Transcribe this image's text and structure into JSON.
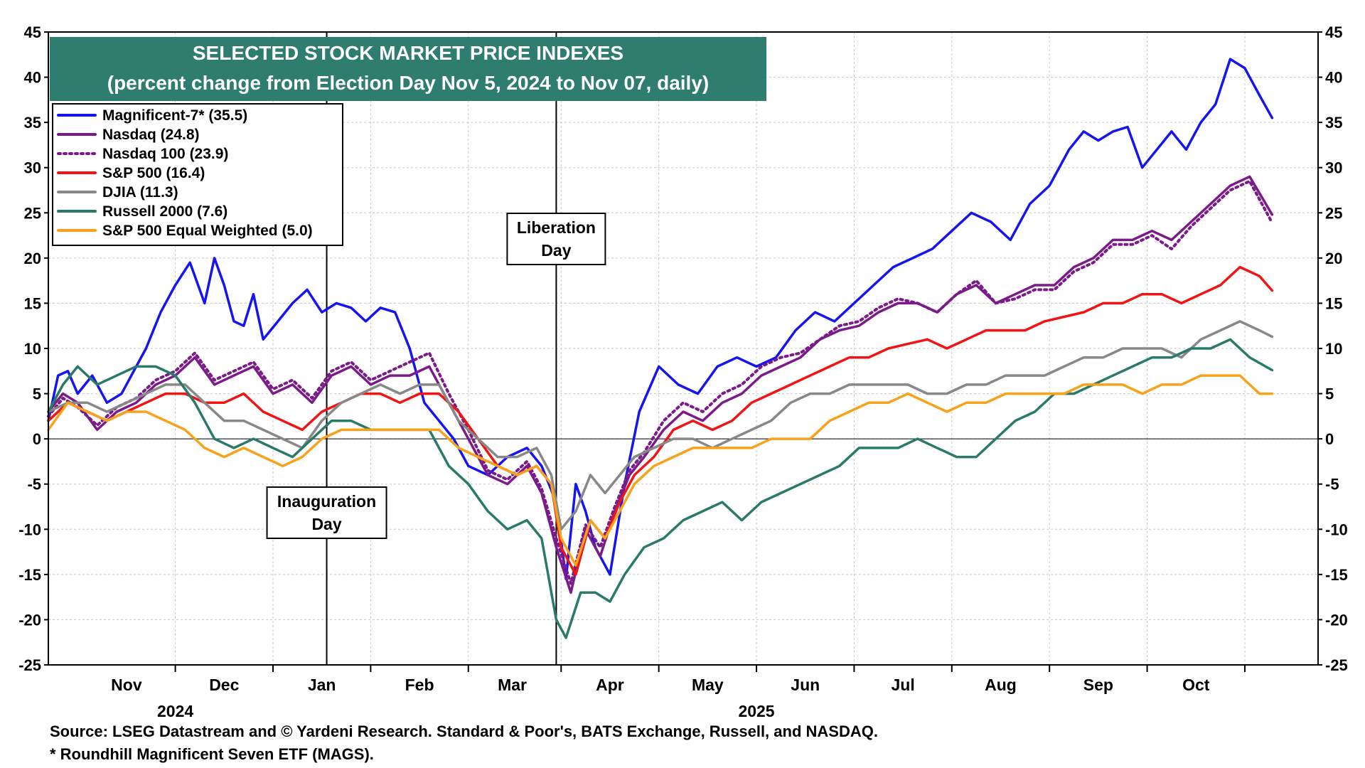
{
  "chart_data": {
    "type": "line",
    "title": "SELECTED STOCK MARKET PRICE INDEXES",
    "subtitle": "(percent change from Election Day Nov 5, 2024 to Nov 07, daily)",
    "ylim": [
      -25,
      45
    ],
    "y_ticks": [
      45,
      40,
      35,
      30,
      25,
      20,
      15,
      10,
      5,
      0,
      -5,
      -10,
      -15,
      -20,
      -25
    ],
    "x_start": "2024-11-05",
    "x_end": "2025-11-07",
    "month_labels": [
      {
        "label": "Nov",
        "x": 0.8
      },
      {
        "label": "Dec",
        "x": 1.8
      },
      {
        "label": "Jan",
        "x": 2.8
      },
      {
        "label": "Feb",
        "x": 3.8
      },
      {
        "label": "Mar",
        "x": 4.75
      },
      {
        "label": "Apr",
        "x": 5.75
      },
      {
        "label": "May",
        "x": 6.75
      },
      {
        "label": "Jun",
        "x": 7.75
      },
      {
        "label": "Jul",
        "x": 8.75
      },
      {
        "label": "Aug",
        "x": 9.75
      },
      {
        "label": "Sep",
        "x": 10.75
      },
      {
        "label": "Oct",
        "x": 11.75
      }
    ],
    "month_boundaries": [
      1.3,
      2.3,
      3.3,
      4.3,
      5.25,
      6.25,
      7.25,
      8.25,
      9.25,
      10.25,
      11.25,
      12.25
    ],
    "year_labels": [
      {
        "label": "2024",
        "x": 1.3
      },
      {
        "label": "2025",
        "x": 7.25
      }
    ],
    "legend": [
      {
        "label": "Magnificent-7* (35.5)",
        "color": "#1515f0",
        "dashed": false
      },
      {
        "label": "Nasdaq (24.8)",
        "color": "#7b1b8a",
        "dashed": false
      },
      {
        "label": "Nasdaq 100 (23.9)",
        "color": "#7b1b8a",
        "dashed": true
      },
      {
        "label": "S&P 500 (16.4)",
        "color": "#f01414",
        "dashed": false
      },
      {
        "label": "DJIA (11.3)",
        "color": "#888888",
        "dashed": false
      },
      {
        "label": "Russell 2000 (7.6)",
        "color": "#2a7a6a",
        "dashed": false
      },
      {
        "label": "S&P 500 Equal Weighted (5.0)",
        "color": "#f7a21b",
        "dashed": false
      }
    ],
    "annotations": [
      {
        "lines": [
          "Inauguration",
          "Day"
        ],
        "x": 2.85
      },
      {
        "lines": [
          "Liberation",
          "Day"
        ],
        "x": 5.2
      }
    ],
    "series": [
      {
        "name": "Magnificent-7*",
        "color": "#1515f0",
        "dashed": false,
        "x": [
          0,
          0.1,
          0.2,
          0.3,
          0.45,
          0.6,
          0.75,
          0.9,
          1.0,
          1.15,
          1.3,
          1.45,
          1.6,
          1.7,
          1.8,
          1.9,
          2.0,
          2.1,
          2.2,
          2.35,
          2.5,
          2.65,
          2.8,
          2.95,
          3.1,
          3.25,
          3.4,
          3.55,
          3.7,
          3.85,
          4.0,
          4.15,
          4.3,
          4.5,
          4.7,
          4.9,
          5.05,
          5.2,
          5.3,
          5.4,
          5.5,
          5.6,
          5.75,
          5.9,
          6.05,
          6.25,
          6.45,
          6.65,
          6.85,
          7.05,
          7.25,
          7.45,
          7.65,
          7.85,
          8.05,
          8.25,
          8.45,
          8.65,
          8.85,
          9.05,
          9.25,
          9.45,
          9.65,
          9.85,
          10.05,
          10.25,
          10.45,
          10.6,
          10.75,
          10.9,
          11.05,
          11.2,
          11.35,
          11.5,
          11.65,
          11.8,
          11.95,
          12.1,
          12.25,
          12.4,
          12.53
        ],
        "y": [
          2,
          7,
          7.5,
          5,
          7,
          4,
          5,
          8,
          10,
          14,
          17,
          19.5,
          15,
          20,
          17,
          13,
          12.5,
          16,
          11,
          13,
          15,
          16.5,
          14,
          15,
          14.5,
          13,
          14.5,
          14,
          10,
          4,
          2,
          0,
          -3,
          -4,
          -2,
          -1,
          -3,
          -7,
          -15.5,
          -5,
          -8,
          -12,
          -15,
          -5,
          3,
          8,
          6,
          5,
          8,
          9,
          8,
          9,
          12,
          14,
          13,
          15,
          17,
          19,
          20,
          21,
          23,
          25,
          24,
          22,
          26,
          28,
          32,
          34,
          33,
          34,
          34.5,
          30,
          32,
          34,
          32,
          35,
          37,
          42,
          41,
          38,
          35.5
        ]
      },
      {
        "name": "Nasdaq",
        "color": "#7b1b8a",
        "dashed": false,
        "x": [
          0,
          0.15,
          0.3,
          0.5,
          0.7,
          0.9,
          1.1,
          1.3,
          1.5,
          1.7,
          1.9,
          2.1,
          2.3,
          2.5,
          2.7,
          2.9,
          3.1,
          3.3,
          3.5,
          3.7,
          3.9,
          4.1,
          4.3,
          4.5,
          4.7,
          4.9,
          5.05,
          5.2,
          5.35,
          5.5,
          5.65,
          5.8,
          5.95,
          6.1,
          6.3,
          6.5,
          6.7,
          6.9,
          7.1,
          7.3,
          7.5,
          7.7,
          7.9,
          8.1,
          8.3,
          8.5,
          8.7,
          8.9,
          9.1,
          9.3,
          9.5,
          9.7,
          9.9,
          10.1,
          10.3,
          10.5,
          10.7,
          10.9,
          11.1,
          11.3,
          11.5,
          11.7,
          11.9,
          12.1,
          12.3,
          12.53
        ],
        "y": [
          3,
          5,
          4,
          1,
          3,
          4,
          6,
          7,
          9,
          6,
          7,
          8,
          5,
          6,
          4,
          7,
          8,
          6,
          7,
          7,
          8,
          4,
          0,
          -4,
          -5,
          -3,
          -6,
          -12,
          -17,
          -10,
          -13,
          -8,
          -4,
          -2,
          1,
          3,
          2,
          4,
          5,
          7,
          8,
          9,
          11,
          12,
          12.5,
          14,
          15,
          15,
          14,
          16,
          17,
          15,
          16,
          17,
          17,
          19,
          20,
          22,
          22,
          23,
          22,
          24,
          26,
          28,
          29,
          24.8
        ]
      },
      {
        "name": "Nasdaq 100",
        "color": "#7b1b8a",
        "dashed": true,
        "x": [
          0,
          0.15,
          0.3,
          0.5,
          0.7,
          0.9,
          1.1,
          1.3,
          1.5,
          1.7,
          1.9,
          2.1,
          2.3,
          2.5,
          2.7,
          2.9,
          3.1,
          3.3,
          3.5,
          3.7,
          3.9,
          4.1,
          4.3,
          4.5,
          4.7,
          4.9,
          5.05,
          5.2,
          5.35,
          5.5,
          5.65,
          5.8,
          5.95,
          6.1,
          6.3,
          6.5,
          6.7,
          6.9,
          7.1,
          7.3,
          7.5,
          7.7,
          7.9,
          8.1,
          8.3,
          8.5,
          8.7,
          8.9,
          9.1,
          9.3,
          9.5,
          9.7,
          9.9,
          10.1,
          10.3,
          10.5,
          10.7,
          10.9,
          11.1,
          11.3,
          11.5,
          11.7,
          11.9,
          12.1,
          12.3,
          12.53
        ],
        "y": [
          2.5,
          4.5,
          3.5,
          1.5,
          3.5,
          4.5,
          6.5,
          7.5,
          9.5,
          6.5,
          7.5,
          8.5,
          5.5,
          6.5,
          4.5,
          7.5,
          8.5,
          6.5,
          7.5,
          8.5,
          9.5,
          5,
          1,
          -3.5,
          -4.5,
          -2.5,
          -5.5,
          -11,
          -16,
          -9.5,
          -12,
          -7.5,
          -3.5,
          -1.5,
          2,
          4,
          3,
          5,
          6,
          8,
          9,
          9.5,
          11,
          12.5,
          13,
          14.5,
          15.5,
          15,
          14,
          16,
          17.5,
          15,
          15.5,
          16.5,
          16.5,
          18.5,
          19.5,
          21.5,
          21.5,
          22.5,
          21,
          23.5,
          25.5,
          27.5,
          28.5,
          23.9
        ]
      },
      {
        "name": "S&P 500",
        "color": "#f01414",
        "dashed": false,
        "x": [
          0,
          0.2,
          0.4,
          0.6,
          0.8,
          1.0,
          1.2,
          1.4,
          1.6,
          1.8,
          2.0,
          2.2,
          2.4,
          2.6,
          2.8,
          3.0,
          3.2,
          3.4,
          3.6,
          3.8,
          4.0,
          4.2,
          4.4,
          4.6,
          4.8,
          5.0,
          5.15,
          5.25,
          5.4,
          5.55,
          5.7,
          5.85,
          6.0,
          6.2,
          6.4,
          6.6,
          6.8,
          7.0,
          7.2,
          7.4,
          7.6,
          7.8,
          8.0,
          8.2,
          8.4,
          8.6,
          8.8,
          9.0,
          9.2,
          9.4,
          9.6,
          9.8,
          10.0,
          10.2,
          10.4,
          10.6,
          10.8,
          11.0,
          11.2,
          11.4,
          11.6,
          11.8,
          12.0,
          12.2,
          12.4,
          12.53
        ],
        "y": [
          2,
          4,
          3,
          2,
          3,
          4,
          5,
          5,
          4,
          4,
          5,
          3,
          2,
          1,
          3,
          4,
          5,
          5,
          4,
          5,
          5,
          3,
          0,
          -3,
          -4,
          -3,
          -5,
          -12,
          -15,
          -9,
          -11,
          -7,
          -4,
          -2,
          1,
          2,
          1,
          2,
          4,
          5,
          6,
          7,
          8,
          9,
          9,
          10,
          10.5,
          11,
          10,
          11,
          12,
          12,
          12,
          13,
          13.5,
          14,
          15,
          15,
          16,
          16,
          15,
          16,
          17,
          19,
          18,
          16.4
        ]
      },
      {
        "name": "DJIA",
        "color": "#888888",
        "dashed": false,
        "x": [
          0,
          0.2,
          0.4,
          0.6,
          0.8,
          1.0,
          1.2,
          1.4,
          1.6,
          1.8,
          2.0,
          2.2,
          2.4,
          2.6,
          2.8,
          3.0,
          3.2,
          3.4,
          3.6,
          3.8,
          4.0,
          4.2,
          4.4,
          4.6,
          4.8,
          5.0,
          5.15,
          5.25,
          5.4,
          5.55,
          5.7,
          5.85,
          6.0,
          6.2,
          6.4,
          6.6,
          6.8,
          7.0,
          7.2,
          7.4,
          7.6,
          7.8,
          8.0,
          8.2,
          8.4,
          8.6,
          8.8,
          9.0,
          9.2,
          9.4,
          9.6,
          9.8,
          10.0,
          10.2,
          10.4,
          10.6,
          10.8,
          11.0,
          11.2,
          11.4,
          11.6,
          11.8,
          12.0,
          12.2,
          12.4,
          12.53
        ],
        "y": [
          3,
          4,
          4,
          3,
          4,
          5,
          6,
          6,
          4,
          2,
          2,
          1,
          0,
          -1,
          2,
          4,
          5,
          6,
          5,
          6,
          6,
          2,
          0,
          -2,
          -2,
          -1,
          -4,
          -10,
          -8,
          -4,
          -6,
          -4,
          -2,
          -1,
          0,
          0,
          -1,
          0,
          1,
          2,
          4,
          5,
          5,
          6,
          6,
          6,
          6,
          5,
          5,
          6,
          6,
          7,
          7,
          7,
          8,
          9,
          9,
          10,
          10,
          10,
          9,
          11,
          12,
          13,
          12,
          11.3
        ]
      },
      {
        "name": "Russell 2000",
        "color": "#2a7a6a",
        "dashed": false,
        "x": [
          0,
          0.15,
          0.3,
          0.5,
          0.7,
          0.9,
          1.1,
          1.3,
          1.5,
          1.7,
          1.9,
          2.1,
          2.3,
          2.5,
          2.7,
          2.9,
          3.1,
          3.3,
          3.5,
          3.7,
          3.9,
          4.1,
          4.3,
          4.5,
          4.7,
          4.9,
          5.05,
          5.2,
          5.3,
          5.45,
          5.6,
          5.75,
          5.9,
          6.1,
          6.3,
          6.5,
          6.7,
          6.9,
          7.1,
          7.3,
          7.5,
          7.7,
          7.9,
          8.1,
          8.3,
          8.5,
          8.7,
          8.9,
          9.1,
          9.3,
          9.5,
          9.7,
          9.9,
          10.1,
          10.3,
          10.5,
          10.7,
          10.9,
          11.1,
          11.3,
          11.5,
          11.7,
          11.9,
          12.1,
          12.3,
          12.53
        ],
        "y": [
          3,
          6,
          8,
          6,
          7,
          8,
          8,
          7,
          4,
          0,
          -1,
          0,
          -1,
          -2,
          0,
          2,
          2,
          1,
          1,
          1,
          1,
          -3,
          -5,
          -8,
          -10,
          -9,
          -11,
          -20,
          -22,
          -17,
          -17,
          -18,
          -15,
          -12,
          -11,
          -9,
          -8,
          -7,
          -9,
          -7,
          -6,
          -5,
          -4,
          -3,
          -1,
          -1,
          -1,
          0,
          -1,
          -2,
          -2,
          0,
          2,
          3,
          5,
          5,
          6,
          7,
          8,
          9,
          9,
          10,
          10,
          11,
          9,
          7.6
        ]
      },
      {
        "name": "S&P 500 Equal Weighted",
        "color": "#f7a21b",
        "dashed": false,
        "x": [
          0,
          0.2,
          0.4,
          0.6,
          0.8,
          1.0,
          1.2,
          1.4,
          1.6,
          1.8,
          2.0,
          2.2,
          2.4,
          2.6,
          2.8,
          3.0,
          3.2,
          3.4,
          3.6,
          3.8,
          4.0,
          4.2,
          4.4,
          4.6,
          4.8,
          5.0,
          5.15,
          5.25,
          5.4,
          5.55,
          5.7,
          5.85,
          6.0,
          6.2,
          6.4,
          6.6,
          6.8,
          7.0,
          7.2,
          7.4,
          7.6,
          7.8,
          8.0,
          8.2,
          8.4,
          8.6,
          8.8,
          9.0,
          9.2,
          9.4,
          9.6,
          9.8,
          10.0,
          10.2,
          10.4,
          10.6,
          10.8,
          11.0,
          11.2,
          11.4,
          11.6,
          11.8,
          12.0,
          12.2,
          12.4,
          12.53
        ],
        "y": [
          1,
          4,
          3,
          2,
          3,
          3,
          2,
          1,
          -1,
          -2,
          -1,
          -2,
          -3,
          -2,
          0,
          1,
          1,
          1,
          1,
          1,
          1,
          -1,
          -2,
          -3,
          -4,
          -3,
          -5,
          -11,
          -14,
          -9,
          -11,
          -8,
          -5,
          -3,
          -2,
          -1,
          -1,
          -1,
          -1,
          0,
          0,
          0,
          2,
          3,
          4,
          4,
          5,
          4,
          3,
          4,
          4,
          5,
          5,
          5,
          5,
          6,
          6,
          6,
          5,
          6,
          6,
          7,
          7,
          7,
          5,
          5.0
        ]
      }
    ]
  },
  "footer": {
    "source": "Source: LSEG Datastream and © Yardeni Research. Standard & Poor's, BATS Exchange, Russell, and NASDAQ.",
    "note": "* Roundhill Magnificent Seven ETF (MAGS)."
  }
}
